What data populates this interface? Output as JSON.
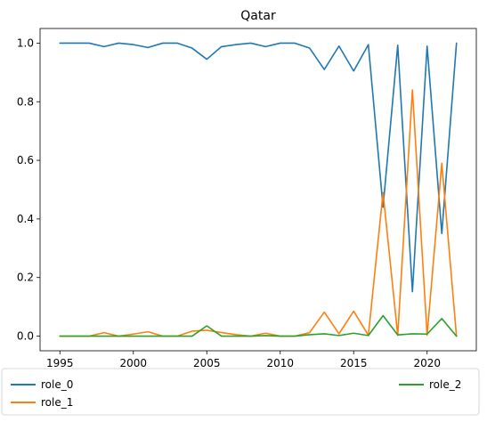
{
  "chart_data": {
    "type": "line",
    "title": "Qatar",
    "xlabel": "",
    "ylabel": "",
    "xlim": [
      1993.65,
      2023.35
    ],
    "ylim": [
      -0.05,
      1.05
    ],
    "xticks": [
      1995,
      2000,
      2005,
      2010,
      2015,
      2020
    ],
    "yticks": [
      0.0,
      0.2,
      0.4,
      0.6,
      0.8,
      1.0
    ],
    "ytick_labels": [
      "0.0",
      "0.2",
      "0.4",
      "0.6",
      "0.8",
      "1.0"
    ],
    "grid": false,
    "legend": {
      "placement": "bottom, below plot",
      "columns": 2
    },
    "x": [
      1995,
      1996,
      1997,
      1998,
      1999,
      2000,
      2001,
      2002,
      2003,
      2004,
      2005,
      2006,
      2007,
      2008,
      2009,
      2010,
      2011,
      2012,
      2013,
      2014,
      2015,
      2016,
      2017,
      2018,
      2019,
      2020,
      2021,
      2022
    ],
    "series": [
      {
        "name": "role_0",
        "color": "#1f77b4",
        "values": [
          1.0,
          1.0,
          1.0,
          0.988,
          1.0,
          0.995,
          0.985,
          1.0,
          1.0,
          0.983,
          0.945,
          0.988,
          0.995,
          1.0,
          0.988,
          1.0,
          1.0,
          0.983,
          0.91,
          0.99,
          0.905,
          0.995,
          0.44,
          0.993,
          0.152,
          0.99,
          0.35,
          1.0
        ]
      },
      {
        "name": "role_1",
        "color": "#ff7f0e",
        "values": [
          0.0,
          0.0,
          0.0,
          0.012,
          0.0,
          0.007,
          0.015,
          0.0,
          0.0,
          0.017,
          0.02,
          0.012,
          0.005,
          0.0,
          0.01,
          0.0,
          0.0,
          0.012,
          0.082,
          0.008,
          0.085,
          0.003,
          0.49,
          0.003,
          0.84,
          0.003,
          0.59,
          0.0
        ]
      },
      {
        "name": "role_2",
        "color": "#2ca02c",
        "values": [
          0.0,
          0.0,
          0.0,
          0.0,
          0.0,
          0.0,
          0.0,
          0.0,
          0.0,
          0.0,
          0.035,
          0.0,
          0.0,
          0.0,
          0.002,
          0.0,
          0.0,
          0.005,
          0.008,
          0.002,
          0.01,
          0.002,
          0.07,
          0.004,
          0.008,
          0.007,
          0.06,
          0.0
        ]
      }
    ]
  }
}
